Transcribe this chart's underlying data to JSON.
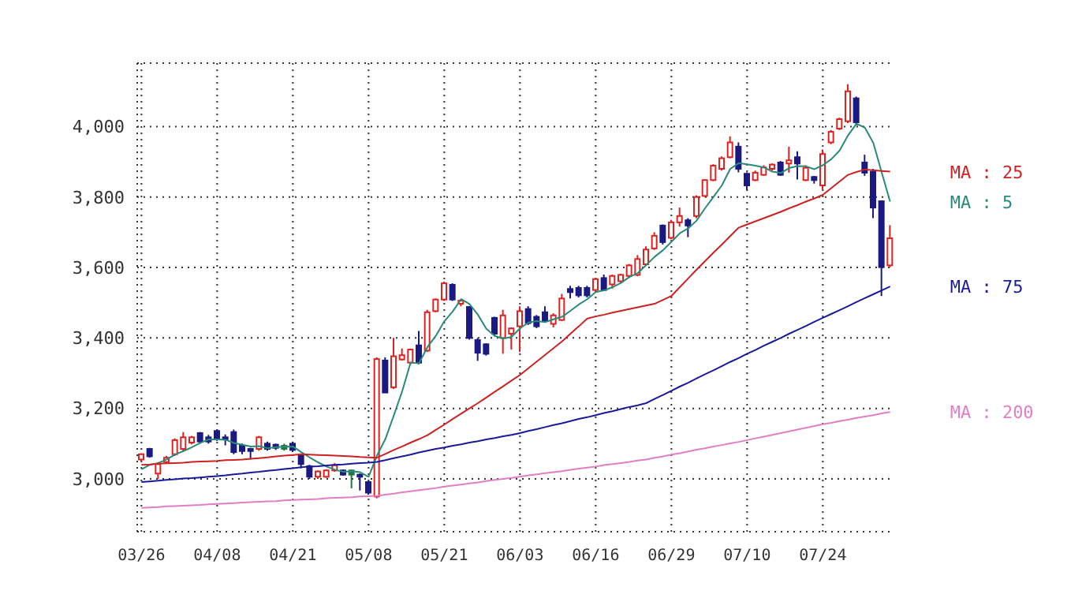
{
  "chart_data": {
    "type": "candlestick",
    "categories": [
      "03/26",
      null,
      null,
      null,
      null,
      null,
      null,
      null,
      null,
      "04/08",
      null,
      null,
      null,
      null,
      null,
      null,
      null,
      null,
      "04/21",
      null,
      null,
      null,
      null,
      null,
      null,
      null,
      null,
      "05/08",
      null,
      null,
      null,
      null,
      null,
      null,
      null,
      null,
      "05/21",
      null,
      null,
      null,
      null,
      null,
      null,
      null,
      null,
      "06/03",
      null,
      null,
      null,
      null,
      null,
      null,
      null,
      null,
      "06/16",
      null,
      null,
      null,
      null,
      null,
      null,
      null,
      null,
      "06/29",
      null,
      null,
      null,
      null,
      null,
      null,
      null,
      null,
      "07/10",
      null,
      null,
      null,
      null,
      null,
      null,
      null,
      null,
      "07/24",
      null,
      null,
      null,
      null,
      null,
      null,
      null,
      null
    ],
    "ohlc": [
      [
        3055,
        3072,
        3050,
        3070
      ],
      [
        3085,
        3088,
        3060,
        3064
      ],
      [
        3015,
        3045,
        3000,
        3042
      ],
      [
        3048,
        3065,
        3045,
        3060
      ],
      [
        3070,
        3115,
        3065,
        3110
      ],
      [
        3085,
        3133,
        3080,
        3118
      ],
      [
        3103,
        3122,
        3098,
        3118
      ],
      [
        3130,
        3133,
        3100,
        3106
      ],
      [
        3118,
        3125,
        3100,
        3106
      ],
      [
        3136,
        3140,
        3108,
        3112
      ],
      [
        3118,
        3126,
        3095,
        3112
      ],
      [
        3133,
        3140,
        3070,
        3076
      ],
      [
        3094,
        3100,
        3070,
        3079
      ],
      [
        3085,
        3088,
        3055,
        3079
      ],
      [
        3085,
        3122,
        3080,
        3118
      ],
      [
        3100,
        3106,
        3080,
        3085
      ],
      [
        3097,
        3100,
        3082,
        3088
      ],
      [
        3094,
        3100,
        3080,
        3085
      ],
      [
        3100,
        3106,
        3076,
        3082
      ],
      [
        3067,
        3070,
        3030,
        3042
      ],
      [
        3036,
        3040,
        3000,
        3006
      ],
      [
        3006,
        3024,
        3000,
        3021
      ],
      [
        3006,
        3027,
        3003,
        3024
      ],
      [
        3024,
        3045,
        3020,
        3039
      ],
      [
        3024,
        3027,
        3009,
        3012
      ],
      [
        3024,
        3027,
        2973,
        3012
      ],
      [
        3012,
        3015,
        2967,
        3006
      ],
      [
        2991,
        2994,
        2955,
        2961
      ],
      [
        2950,
        3345,
        2945,
        3340
      ],
      [
        3336,
        3345,
        3245,
        3245
      ],
      [
        3260,
        3400,
        3255,
        3348
      ],
      [
        3339,
        3370,
        3336,
        3351
      ],
      [
        3330,
        3370,
        3325,
        3367
      ],
      [
        3379,
        3420,
        3325,
        3330
      ],
      [
        3364,
        3480,
        3360,
        3473
      ],
      [
        3476,
        3512,
        3473,
        3509
      ],
      [
        3509,
        3560,
        3505,
        3555
      ],
      [
        3551,
        3555,
        3505,
        3509
      ],
      [
        3497,
        3510,
        3490,
        3506
      ],
      [
        3488,
        3490,
        3395,
        3400
      ],
      [
        3394,
        3400,
        3335,
        3358
      ],
      [
        3382,
        3385,
        3350,
        3355
      ],
      [
        3457,
        3460,
        3405,
        3412
      ],
      [
        3400,
        3480,
        3355,
        3464
      ],
      [
        3412,
        3430,
        3367,
        3427
      ],
      [
        3433,
        3490,
        3360,
        3476
      ],
      [
        3482,
        3490,
        3437,
        3442
      ],
      [
        3460,
        3465,
        3428,
        3433
      ],
      [
        3473,
        3490,
        3445,
        3448
      ],
      [
        3440,
        3470,
        3430,
        3464
      ],
      [
        3451,
        3525,
        3448,
        3512
      ],
      [
        3539,
        3548,
        3512,
        3530
      ],
      [
        3542,
        3548,
        3515,
        3521
      ],
      [
        3542,
        3548,
        3515,
        3521
      ],
      [
        3536,
        3570,
        3530,
        3567
      ],
      [
        3570,
        3580,
        3533,
        3536
      ],
      [
        3552,
        3580,
        3540,
        3576
      ],
      [
        3561,
        3582,
        3555,
        3579
      ],
      [
        3576,
        3610,
        3570,
        3606
      ],
      [
        3579,
        3635,
        3575,
        3624
      ],
      [
        3609,
        3660,
        3605,
        3651
      ],
      [
        3654,
        3700,
        3650,
        3690
      ],
      [
        3719,
        3722,
        3665,
        3672
      ],
      [
        3684,
        3735,
        3680,
        3728
      ],
      [
        3728,
        3770,
        3716,
        3746
      ],
      [
        3734,
        3740,
        3686,
        3719
      ],
      [
        3746,
        3805,
        3740,
        3800
      ],
      [
        3803,
        3850,
        3800,
        3848
      ],
      [
        3848,
        3893,
        3845,
        3889
      ],
      [
        3880,
        3915,
        3875,
        3910
      ],
      [
        3913,
        3972,
        3910,
        3955
      ],
      [
        3943,
        3955,
        3870,
        3880
      ],
      [
        3866,
        3870,
        3820,
        3833
      ],
      [
        3848,
        3875,
        3845,
        3869
      ],
      [
        3863,
        3890,
        3860,
        3884
      ],
      [
        3880,
        3895,
        3875,
        3892
      ],
      [
        3898,
        3902,
        3860,
        3863
      ],
      [
        3895,
        3943,
        3869,
        3904
      ],
      [
        3913,
        3930,
        3850,
        3895
      ],
      [
        3848,
        3890,
        3845,
        3883
      ],
      [
        3857,
        3860,
        3838,
        3848
      ],
      [
        3833,
        3935,
        3820,
        3922
      ],
      [
        3955,
        3990,
        3950,
        3985
      ],
      [
        3994,
        4025,
        3990,
        4021
      ],
      [
        4015,
        4120,
        4010,
        4100
      ],
      [
        4080,
        4085,
        4005,
        4012
      ],
      [
        3898,
        3920,
        3860,
        3869
      ],
      [
        3872,
        3880,
        3740,
        3770
      ],
      [
        3788,
        3790,
        3519,
        3601
      ],
      [
        3606,
        3720,
        3600,
        3683
      ]
    ],
    "colors": [
      "#dd2222",
      "#1a1a80",
      "#dd2222",
      "#dd2222",
      "#dd2222",
      "#dd2222",
      "#dd2222",
      "#1a1a80",
      "#1a1a80",
      "#1a1a80",
      "#1a1a80",
      "#1a1a80",
      "#1a1a80",
      "#1a1a80",
      "#dd2222",
      "#1a1a80",
      "#1a1a80",
      "#227744",
      "#1a1a80",
      "#1a1a80",
      "#1a1a80",
      "#dd2222",
      "#dd2222",
      "#dd2222",
      "#1a1a80",
      "#227744",
      "#1a1a80",
      "#1a1a80",
      "#dd2222",
      "#1a1a80",
      "#dd2222",
      "#dd2222",
      "#dd2222",
      "#1a1a80",
      "#dd2222",
      "#dd2222",
      "#dd2222",
      "#1a1a80",
      "#dd2222",
      "#1a1a80",
      "#1a1a80",
      "#1a1a80",
      "#1a1a80",
      "#dd2222",
      "#dd2222",
      "#dd2222",
      "#1a1a80",
      "#1a1a80",
      "#1a1a80",
      "#dd2222",
      "#dd2222",
      "#1a1a80",
      "#1a1a80",
      "#1a1a80",
      "#dd2222",
      "#1a1a80",
      "#dd2222",
      "#dd2222",
      "#dd2222",
      "#dd2222",
      "#dd2222",
      "#dd2222",
      "#1a1a80",
      "#dd2222",
      "#dd2222",
      "#1a1a80",
      "#dd2222",
      "#dd2222",
      "#dd2222",
      "#dd2222",
      "#dd2222",
      "#1a1a80",
      "#1a1a80",
      "#dd2222",
      "#dd2222",
      "#dd2222",
      "#1a1a80",
      "#dd2222",
      "#1a1a80",
      "#dd2222",
      "#1a1a80",
      "#dd2222",
      "#dd2222",
      "#dd2222",
      "#dd2222",
      "#1a1a80",
      "#1a1a80",
      "#1a1a80",
      "#1a1a80",
      "#dd2222"
    ],
    "series": [
      {
        "name": "MA : 5",
        "type": "line",
        "color": "#2a8a7a",
        "values": [
          3027,
          3040,
          3045,
          3055,
          3069,
          3079,
          3090,
          3102,
          3112,
          3112,
          3111,
          3102,
          3097,
          3092,
          3093,
          3087,
          3090,
          3091,
          3092,
          3076,
          3061,
          3047,
          3035,
          3026,
          3020,
          3022,
          3019,
          3006,
          3066,
          3113,
          3180,
          3249,
          3330,
          3328,
          3374,
          3406,
          3447,
          3475,
          3510,
          3496,
          3466,
          3426,
          3406,
          3398,
          3403,
          3427,
          3444,
          3448,
          3445,
          3453,
          3460,
          3477,
          3495,
          3510,
          3530,
          3535,
          3544,
          3556,
          3573,
          3584,
          3607,
          3630,
          3649,
          3673,
          3697,
          3711,
          3733,
          3768,
          3800,
          3833,
          3880,
          3896,
          3893,
          3889,
          3884,
          3872,
          3868,
          3882,
          3888,
          3887,
          3879,
          3890,
          3907,
          3932,
          3975,
          4008,
          3997,
          3954,
          3870,
          3787
        ]
      },
      {
        "name": "MA : 25",
        "type": "line",
        "color": "#cc2222",
        "values": [
          3040,
          3041,
          3043,
          3044,
          3045,
          3046,
          3048,
          3049,
          3050,
          3051,
          3053,
          3054,
          3055,
          3057,
          3059,
          3061,
          3064,
          3066,
          3068,
          3070,
          3069,
          3068,
          3067,
          3066,
          3065,
          3064,
          3062,
          3061,
          3060,
          3071,
          3082,
          3092,
          3103,
          3113,
          3124,
          3139,
          3154,
          3170,
          3185,
          3200,
          3215,
          3231,
          3247,
          3263,
          3279,
          3295,
          3314,
          3333,
          3352,
          3371,
          3390,
          3412,
          3433,
          3455,
          3461,
          3466,
          3472,
          3477,
          3482,
          3487,
          3492,
          3497,
          3508,
          3519,
          3544,
          3569,
          3594,
          3618,
          3642,
          3665,
          3689,
          3713,
          3722,
          3731,
          3740,
          3749,
          3758,
          3768,
          3777,
          3787,
          3796,
          3806,
          3825,
          3844,
          3863,
          3871,
          3878,
          3876,
          3874,
          3872
        ]
      },
      {
        "name": "MA : 75",
        "type": "line",
        "color": "#1a1a99",
        "values": [
          2991,
          2993,
          2995,
          2997,
          2999,
          3001,
          3002,
          3004,
          3006,
          3008,
          3010,
          3013,
          3015,
          3018,
          3020,
          3023,
          3025,
          3028,
          3030,
          3033,
          3035,
          3036,
          3038,
          3040,
          3041,
          3043,
          3045,
          3046,
          3048,
          3053,
          3059,
          3064,
          3069,
          3075,
          3080,
          3085,
          3089,
          3094,
          3098,
          3103,
          3107,
          3112,
          3116,
          3121,
          3125,
          3130,
          3136,
          3141,
          3147,
          3153,
          3158,
          3164,
          3170,
          3175,
          3181,
          3187,
          3192,
          3198,
          3204,
          3209,
          3215,
          3227,
          3238,
          3250,
          3262,
          3273,
          3285,
          3297,
          3308,
          3320,
          3332,
          3343,
          3355,
          3366,
          3378,
          3389,
          3400,
          3412,
          3423,
          3434,
          3446,
          3457,
          3468,
          3479,
          3490,
          3502,
          3513,
          3524,
          3535,
          3546
        ]
      },
      {
        "name": "MA : 200",
        "type": "line",
        "color": "#e27fc4",
        "values": [
          2918,
          2919,
          2920,
          2922,
          2923,
          2924,
          2925,
          2926,
          2928,
          2929,
          2930,
          2931,
          2933,
          2934,
          2935,
          2936,
          2937,
          2939,
          2940,
          2941,
          2942,
          2943,
          2945,
          2946,
          2947,
          2948,
          2950,
          2951,
          2952,
          2955,
          2958,
          2962,
          2965,
          2968,
          2971,
          2974,
          2978,
          2981,
          2984,
          2987,
          2990,
          2994,
          2997,
          3000,
          3003,
          3006,
          3010,
          3013,
          3016,
          3019,
          3022,
          3026,
          3029,
          3032,
          3035,
          3039,
          3042,
          3045,
          3048,
          3052,
          3055,
          3060,
          3064,
          3069,
          3073,
          3078,
          3083,
          3087,
          3092,
          3096,
          3101,
          3105,
          3110,
          3115,
          3120,
          3125,
          3130,
          3135,
          3140,
          3145,
          3150,
          3155,
          3159,
          3164,
          3168,
          3173,
          3177,
          3181,
          3186,
          3190
        ]
      }
    ],
    "ylim": [
      2850,
      4180
    ],
    "yticks": [
      {
        "value": 3000,
        "label": "3,000"
      },
      {
        "value": 3200,
        "label": "3,200"
      },
      {
        "value": 3400,
        "label": "3,400"
      },
      {
        "value": 3600,
        "label": "3,600"
      },
      {
        "value": 3800,
        "label": "3,800"
      },
      {
        "value": 4000,
        "label": "4,000"
      }
    ],
    "grid": true,
    "marker": "none"
  }
}
